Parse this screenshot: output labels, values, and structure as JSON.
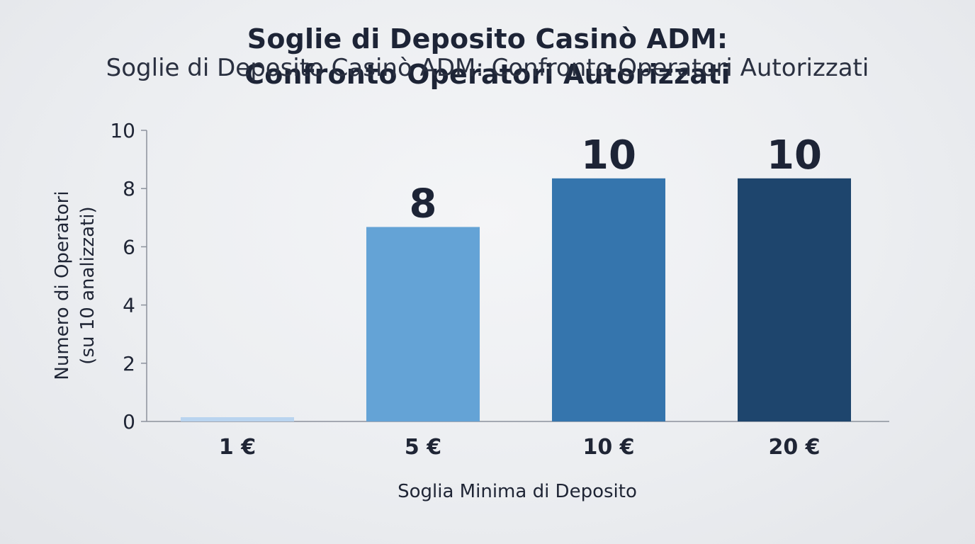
{
  "title_bold_line1": "Soglie di Deposito Casinò ADM:",
  "title_bold_line2": "Confronto Operatori Autorizzati",
  "title_overlay": "Soglie di Deposito Casinò ADM: Confronto Operatori Autorizzati",
  "chart_data": {
    "type": "bar",
    "title": "Soglie di Deposito Casinò ADM: Confronto Operatori Autorizzati",
    "categories": [
      "1 €",
      "5 €",
      "10 €",
      "20 €"
    ],
    "values": [
      0,
      8,
      10,
      10
    ],
    "data_labels": [
      "",
      "8",
      "10",
      "10"
    ],
    "xlabel": "Soglia Minima di Deposito",
    "ylabel_lines": [
      "Numero di Operatori",
      "(su 10 analizzati)"
    ],
    "ylim": [
      0,
      10
    ],
    "yticks": [
      "0",
      "2",
      "4",
      "6",
      "8",
      "10"
    ],
    "grid": false,
    "colors": [
      "#b9d4ef",
      "#64a3d6",
      "#3575ad",
      "#1e456d"
    ]
  }
}
